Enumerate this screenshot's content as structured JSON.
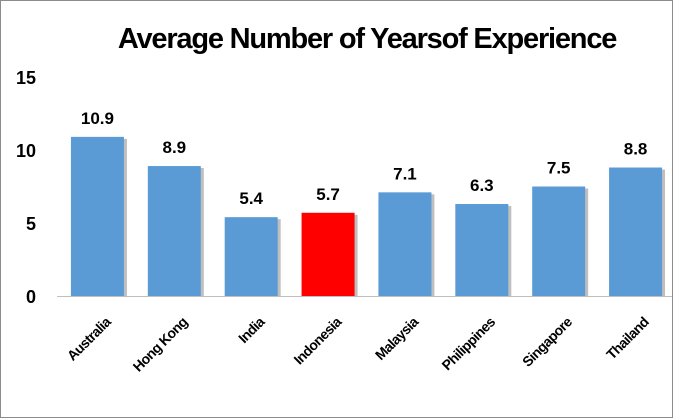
{
  "chart_data": {
    "type": "bar",
    "title": "Average Number of Yearsof Experience",
    "categories": [
      "Australia",
      "Hong Kong",
      "India",
      "Indonesia",
      "Malaysia",
      "Philippines",
      "Singapore",
      "Thailand"
    ],
    "values": [
      10.9,
      8.9,
      5.4,
      5.7,
      7.1,
      6.3,
      7.5,
      8.8
    ],
    "value_labels": [
      "10.9",
      "8.9",
      "5.4",
      "5.7",
      "7.1",
      "6.3",
      "7.5",
      "8.8"
    ],
    "yticks": [
      "0",
      "5",
      "10",
      "15"
    ],
    "ytick_values": [
      0,
      5,
      10,
      15
    ],
    "ylim": [
      0,
      15
    ],
    "grid": false,
    "legend": "none",
    "bar_color": "#5b9bd5",
    "highlight_color": "#ff0000",
    "highlight_category": "Indonesia"
  }
}
